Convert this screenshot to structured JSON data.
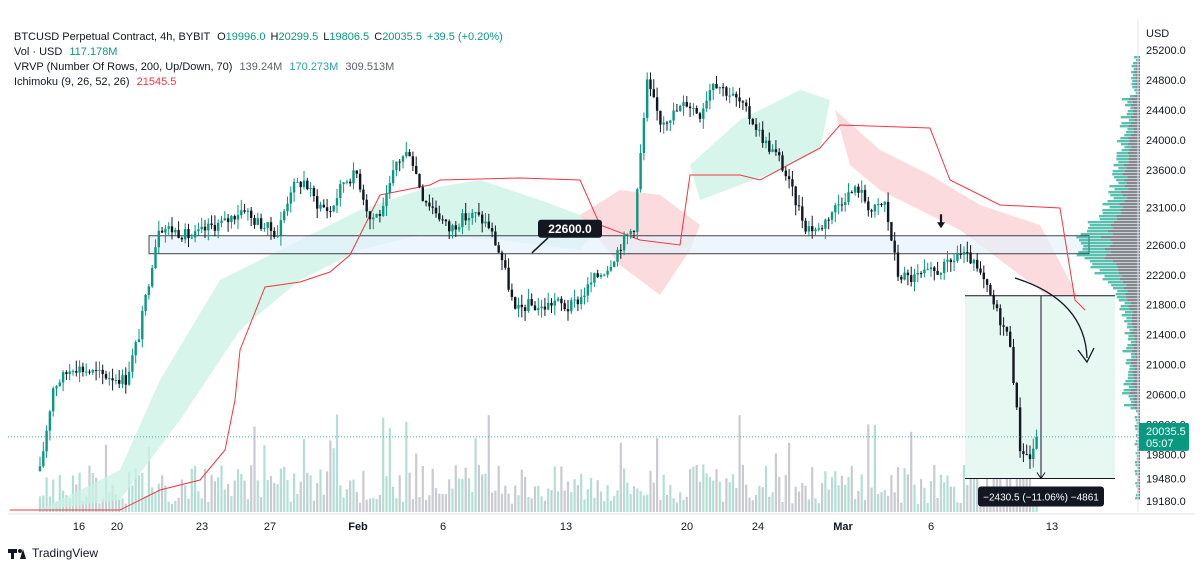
{
  "legend": {
    "symbol": "BTCUSD Perpetual Contract, 4h, BYBIT",
    "o_label": "O",
    "o_val": "19996.0",
    "h_label": "H",
    "h_val": "20299.5",
    "l_label": "L",
    "l_val": "19806.5",
    "c_label": "C",
    "c_val": "20035.5",
    "change": "+39.5 (+0.20%)",
    "vol_label": "Vol · USD",
    "vol_val": "117.178M",
    "vrvp_label": "VRVP (Number Of Rows, 200, Up/Down, 70)",
    "vrvp_v1": "139.24M",
    "vrvp_v2": "170.273M",
    "vrvp_v3": "309.513M",
    "ichimoku_label": "Ichimoku (9, 26, 52, 26)",
    "ichimoku_val": "21545.5"
  },
  "axis": {
    "currency": "USD",
    "price_ticks": [
      "25200.0",
      "24800.0",
      "24400.0",
      "24000.0",
      "23600.0",
      "23100.0",
      "22600.0",
      "22200.0",
      "21800.0",
      "21400.0",
      "21000.0",
      "20600.0",
      "20200.0",
      "19800.0",
      "19480.0",
      "19180.0"
    ],
    "date_ticks": [
      "16",
      "20",
      "23",
      "27",
      "Feb",
      "6",
      "13",
      "20",
      "24",
      "Mar",
      "6",
      "13"
    ]
  },
  "last_price": {
    "value": "20035.5",
    "countdown": "05:07"
  },
  "annotations": {
    "level_label": "22600.0",
    "measure_label": "−2430.5 (−11.06%) −4861"
  },
  "brand": "TradingView",
  "colors": {
    "up": "#089981",
    "down": "#131722",
    "kumo_bull": "#c9f1e4",
    "kumo_bear": "#f9cfd2",
    "baseline": "#f23645",
    "zone_fill": "#e6f2fb",
    "zone_stroke": "#131722",
    "profile_up": "#22ab94",
    "profile_down": "#5d606b",
    "measure_fill": "#e7f7f1"
  },
  "chart_data": {
    "type": "candlestick",
    "timeframe": "4h",
    "symbol": "BTCUSD Perpetual Contract",
    "x_ticks": [
      "16",
      "20",
      "23",
      "27",
      "Feb",
      "6",
      "13",
      "20",
      "24",
      "Mar",
      "6",
      "13"
    ],
    "ylim": [
      19180,
      25200
    ],
    "last_close": 20035.5,
    "key_level": 22600.0,
    "measured_move": {
      "from": 21920,
      "to": 19480,
      "change": -2430.5,
      "change_pct": -11.06,
      "ticks": -4861
    },
    "price_path": [
      [
        0,
        19580
      ],
      [
        4,
        20700
      ],
      [
        10,
        20980
      ],
      [
        18,
        20870
      ],
      [
        26,
        20800
      ],
      [
        30,
        21400
      ],
      [
        36,
        22850
      ],
      [
        40,
        22800
      ],
      [
        46,
        22700
      ],
      [
        52,
        22850
      ],
      [
        56,
        22900
      ],
      [
        62,
        23100
      ],
      [
        64,
        22950
      ],
      [
        72,
        22750
      ],
      [
        76,
        23350
      ],
      [
        80,
        23450
      ],
      [
        84,
        23150
      ],
      [
        88,
        23050
      ],
      [
        92,
        23450
      ],
      [
        96,
        23550
      ],
      [
        100,
        22950
      ],
      [
        104,
        23050
      ],
      [
        108,
        23700
      ],
      [
        112,
        23850
      ],
      [
        116,
        23250
      ],
      [
        120,
        23050
      ],
      [
        124,
        22800
      ],
      [
        128,
        22950
      ],
      [
        132,
        23000
      ],
      [
        136,
        22850
      ],
      [
        140,
        22400
      ],
      [
        144,
        21700
      ],
      [
        148,
        21800
      ],
      [
        152,
        21750
      ],
      [
        156,
        21850
      ],
      [
        160,
        21750
      ],
      [
        164,
        21900
      ],
      [
        168,
        22150
      ],
      [
        172,
        22300
      ],
      [
        176,
        22600
      ],
      [
        180,
        22850
      ],
      [
        184,
        24750
      ],
      [
        188,
        24250
      ],
      [
        192,
        24350
      ],
      [
        196,
        24500
      ],
      [
        200,
        24350
      ],
      [
        204,
        24800
      ],
      [
        208,
        24650
      ],
      [
        212,
        24500
      ],
      [
        216,
        24250
      ],
      [
        220,
        23950
      ],
      [
        224,
        23750
      ],
      [
        228,
        23300
      ],
      [
        232,
        22850
      ],
      [
        236,
        22800
      ],
      [
        240,
        23050
      ],
      [
        244,
        23250
      ],
      [
        248,
        23350
      ],
      [
        252,
        23050
      ],
      [
        256,
        23150
      ],
      [
        260,
        22200
      ],
      [
        264,
        22150
      ],
      [
        268,
        22200
      ],
      [
        272,
        22250
      ],
      [
        276,
        22350
      ],
      [
        278,
        22480
      ],
      [
        282,
        22400
      ],
      [
        286,
        22100
      ],
      [
        290,
        21700
      ],
      [
        294,
        21300
      ],
      [
        297,
        19900
      ],
      [
        300,
        19750
      ],
      [
        302,
        20035
      ]
    ]
  }
}
